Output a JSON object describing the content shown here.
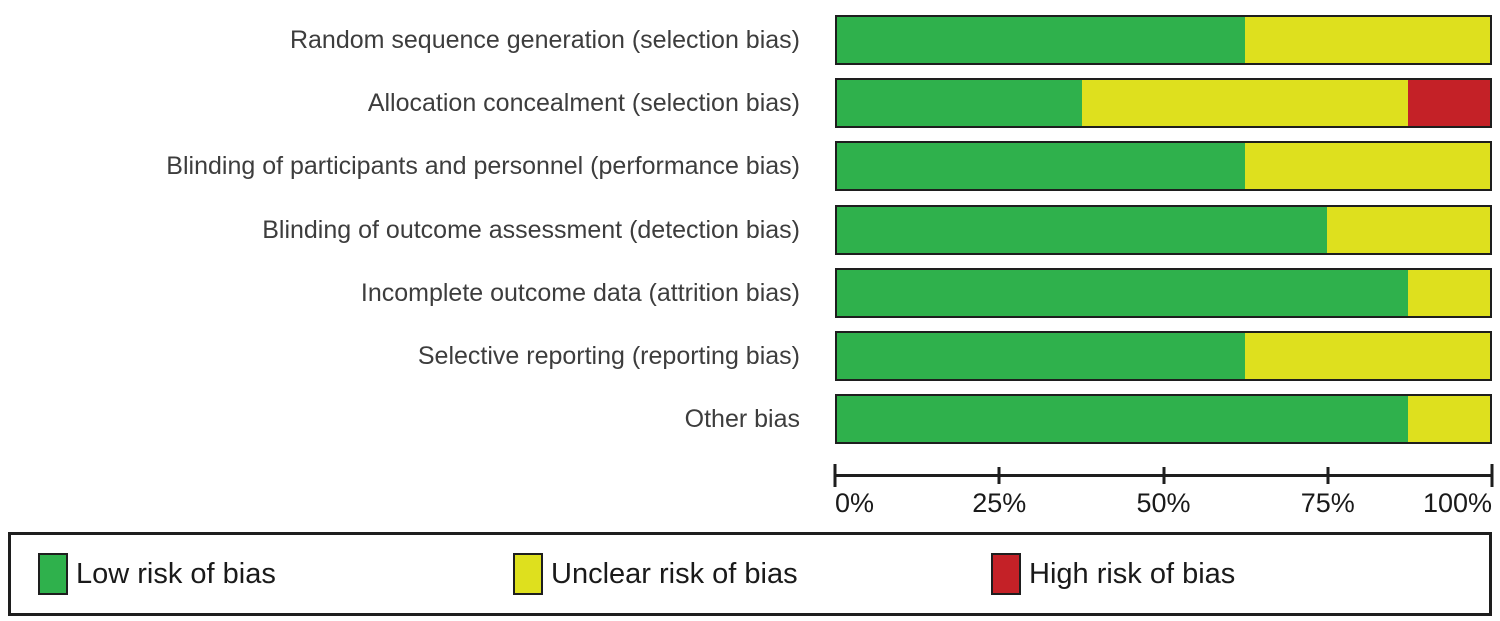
{
  "chart_data": {
    "type": "bar",
    "orientation": "horizontal-stacked",
    "title": "",
    "xlabel": "",
    "ylabel": "",
    "xlim": [
      0,
      100
    ],
    "grid": false,
    "legend_position": "bottom",
    "categories": [
      "Random sequence generation (selection bias)",
      "Allocation concealment (selection bias)",
      "Blinding of participants and personnel (performance bias)",
      "Blinding of outcome assessment (detection bias)",
      "Incomplete outcome data (attrition bias)",
      "Selective reporting (reporting bias)",
      "Other bias"
    ],
    "series": [
      {
        "key": "low",
        "name": "Low risk of bias",
        "color": "#2fb14c",
        "values": [
          62.5,
          37.5,
          62.5,
          75.0,
          87.5,
          62.5,
          87.5
        ]
      },
      {
        "key": "unclear",
        "name": "Unclear risk of bias",
        "color": "#dee01e",
        "values": [
          37.5,
          50.0,
          37.5,
          25.0,
          12.5,
          37.5,
          12.5
        ]
      },
      {
        "key": "high",
        "name": "High risk of bias",
        "color": "#c42127",
        "values": [
          0.0,
          12.5,
          0.0,
          0.0,
          0.0,
          0.0,
          0.0
        ]
      }
    ],
    "xticks": [
      {
        "value": 0,
        "label": "0%"
      },
      {
        "value": 25,
        "label": "25%"
      },
      {
        "value": 50,
        "label": "50%"
      },
      {
        "value": 75,
        "label": "75%"
      },
      {
        "value": 100,
        "label": "100%"
      }
    ]
  },
  "colors": {
    "low": "#2fb14c",
    "unclear": "#dee01e",
    "high": "#c42127",
    "border": "#1e1e1e"
  }
}
